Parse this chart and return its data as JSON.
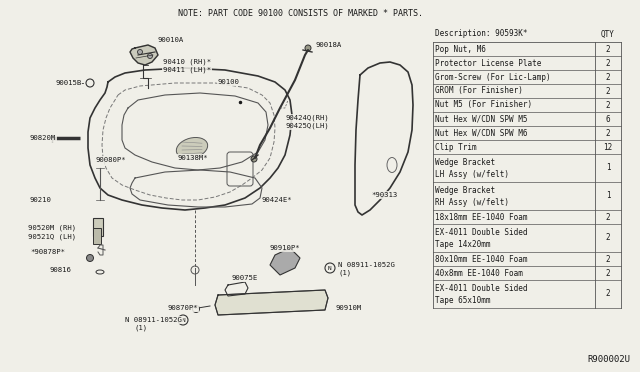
{
  "bg_color": "#f0efe8",
  "note_text": "NOTE: PART CODE 90100 CONSISTS OF MARKED * PARTS.",
  "diagram_ref": "R900002U",
  "table_header_desc": "Description: 90593K*",
  "table_header_qty": "QTY",
  "table_rows": [
    [
      "Pop Nut, M6",
      "2"
    ],
    [
      "Protector License Plate",
      "2"
    ],
    [
      "Grom-Screw (For Lic-Lamp)",
      "2"
    ],
    [
      "GROM (For Finisher)",
      "2"
    ],
    [
      "Nut M5 (For Finisher)",
      "2"
    ],
    [
      "Nut Hex W/CDN SPW M5",
      "6"
    ],
    [
      "Nut Hex W/CDN SPW M6",
      "2"
    ],
    [
      "Clip Trim",
      "12"
    ],
    [
      "Wedge Bracket\nLH Assy (w/felt)",
      "1"
    ],
    [
      "Wedge Bracket\nRH Assy (w/felt)",
      "1"
    ],
    [
      "18x18mm EE-1040 Foam",
      "2"
    ],
    [
      "EX-4011 Double Sided\nTape 14x20mm",
      "2"
    ],
    [
      "80x10mm EE-1040 Foam",
      "2"
    ],
    [
      "40x8mm EE-1040 Foam",
      "2"
    ],
    [
      "EX-4011 Double Sided\nTape 65x10mm",
      "2"
    ]
  ],
  "font_color": "#1a1a1a",
  "line_color": "#555555",
  "dark_line": "#333333",
  "table_font_size": 5.5,
  "label_font_size": 5.2,
  "note_font_size": 6.0
}
